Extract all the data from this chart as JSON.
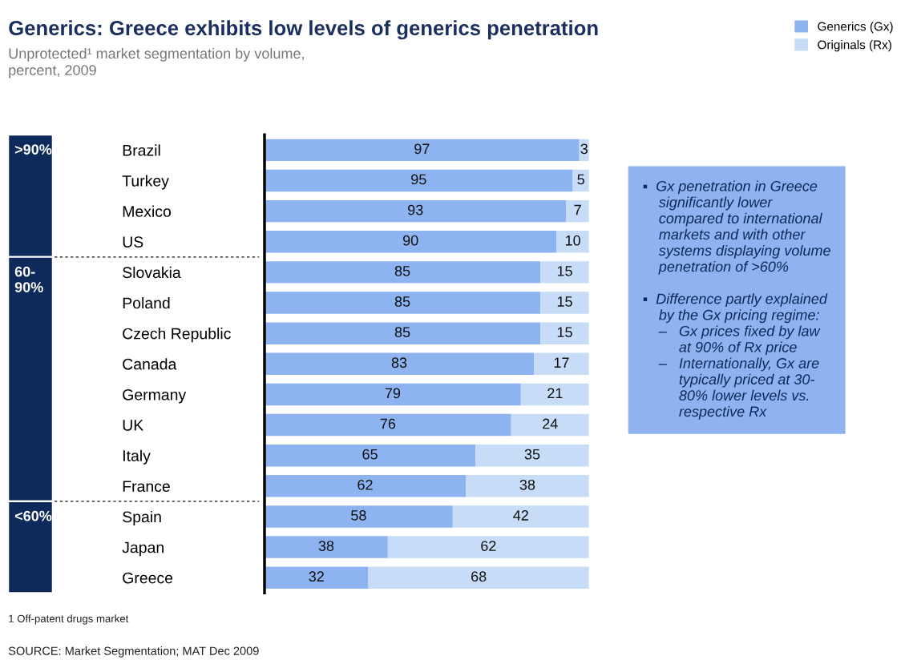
{
  "chart_data": {
    "type": "bar",
    "orientation": "horizontal",
    "stacked": true,
    "title": "Generics: Greece exhibits low levels of generics penetration",
    "subtitle": "Unprotected¹ market segmentation by volume,\npercent, 2009",
    "categories": [
      "Brazil",
      "Turkey",
      "Mexico",
      "US",
      "Slovakia",
      "Poland",
      "Czech Republic",
      "Canada",
      "Germany",
      "UK",
      "Italy",
      "France",
      "Spain",
      "Japan",
      "Greece"
    ],
    "series": [
      {
        "name": "Generics (Gx)",
        "color": "#8db3f0",
        "values": [
          97,
          95,
          93,
          90,
          85,
          85,
          85,
          83,
          79,
          76,
          65,
          62,
          58,
          38,
          32
        ]
      },
      {
        "name": "Originals (Rx)",
        "color": "#c7ddf7",
        "values": [
          3,
          5,
          7,
          10,
          15,
          15,
          15,
          17,
          21,
          24,
          35,
          38,
          42,
          62,
          68
        ]
      }
    ],
    "xlim": [
      0,
      100
    ],
    "tick_labels": "y",
    "data_labels": true,
    "legend": "top right",
    "grid": false,
    "annotations": [
      ">90%",
      "60-\n90%",
      "<60%",
      "▪  Gx penetration in Greece\n    significantly lower\n    compared to international\n    markets and with other\n    systems displaying volume\n    penetration of >60%\n\n▪  Difference partly explained\n    by the Gx pricing regime:\n    –   Gx prices fixed by law\n         at 90% of Rx price\n    –   Internationally, Gx are\n         typically priced at 30-\n         80% lower levels vs.\n         respective Rx",
      "1 Off-patent drugs market",
      "SOURCE: Market Segmentation; MAT Dec 2009"
    ]
  }
}
